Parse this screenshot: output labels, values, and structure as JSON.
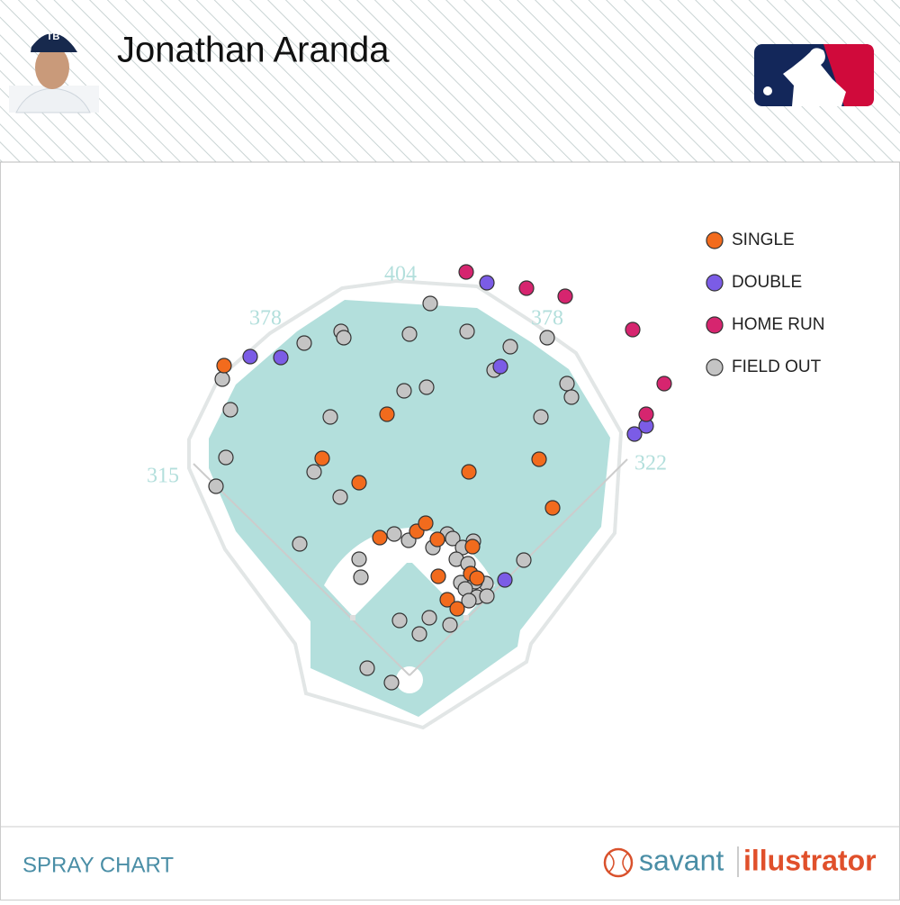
{
  "header": {
    "title": "Jonathan Aranda"
  },
  "chart_data": {
    "type": "scatter",
    "fence_labels": [
      "315",
      "378",
      "404",
      "378",
      "322"
    ],
    "series": [
      {
        "name": "SINGLE",
        "color": "#f26b1d",
        "x": [
          -206,
          -25,
          -97,
          -56,
          66,
          144,
          159,
          -33,
          8,
          18,
          31,
          70,
          32,
          68,
          75,
          42,
          53
        ],
        "y": [
          344,
          290,
          241,
          214,
          226,
          240,
          186,
          153,
          160,
          169,
          151,
          143,
          110,
          113,
          108,
          84,
          74
        ]
      },
      {
        "name": "DOUBLE",
        "color": "#7b5ce6",
        "x": [
          -177,
          -143,
          86,
          101,
          263,
          250,
          106
        ],
        "y": [
          354,
          353,
          436,
          343,
          277,
          268,
          106
        ]
      },
      {
        "name": "HOME RUN",
        "color": "#d6256f",
        "x": [
          63,
          130,
          173,
          248,
          283,
          263
        ],
        "y": [
          448,
          430,
          421,
          384,
          324,
          290
        ]
      },
      {
        "name": "FIELD OUT",
        "color": "#c4c4c4",
        "x": [
          23,
          -76,
          -73,
          0,
          64,
          -117,
          112,
          153,
          94,
          -208,
          -6,
          19,
          175,
          180,
          -199,
          -88,
          146,
          -204,
          -106,
          -215,
          -77,
          -122,
          -17,
          -1,
          42,
          48,
          26,
          59,
          71,
          -56,
          -54,
          52,
          65,
          127,
          57,
          85,
          73,
          62,
          75,
          86,
          66,
          -11,
          22,
          11,
          45,
          -47,
          -20
        ],
        "y": [
          413,
          382,
          375,
          379,
          382,
          369,
          365,
          375,
          339,
          329,
          316,
          320,
          324,
          309,
          295,
          287,
          287,
          242,
          226,
          210,
          198,
          146,
          157,
          150,
          157,
          152,
          142,
          142,
          149,
          129,
          109,
          129,
          124,
          128,
          103,
          102,
          104,
          96,
          87,
          88,
          83,
          61,
          64,
          46,
          56,
          8,
          -8
        ]
      }
    ]
  },
  "footer": {
    "label": "SPRAY CHART",
    "brand_left": "savant",
    "brand_right": "illustrator"
  }
}
